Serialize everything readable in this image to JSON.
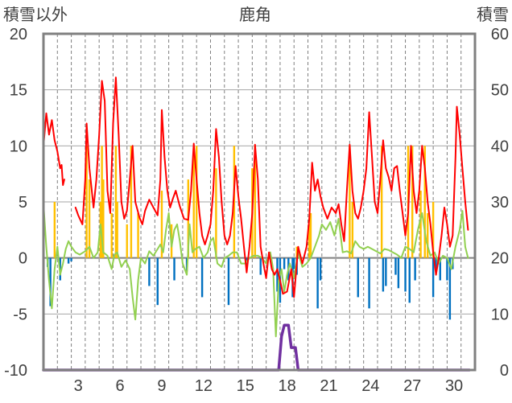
{
  "chart_data": {
    "type": "line",
    "title": "鹿角",
    "ylabel_left": "積雪以外",
    "ylabel_right": "積雪",
    "ylim_left": [
      -10,
      20
    ],
    "ylim_right": [
      0,
      60
    ],
    "yticks_left": [
      "20",
      "15",
      "10",
      "5",
      "0",
      "-5",
      "-10"
    ],
    "yticks_right": [
      "60",
      "50",
      "40",
      "30",
      "20",
      "10",
      "0"
    ],
    "xlim": [
      1,
      32
    ],
    "xticks": [
      "3",
      "6",
      "9",
      "12",
      "15",
      "18",
      "21",
      "24",
      "27",
      "30"
    ],
    "grid": "vertical-dashed-daily, horizontal-solid",
    "colors": {
      "temperature": "#ff0000",
      "precipitation_pos": "#ffc000",
      "precipitation_neg": "#0070c0",
      "green_series": "#92d050",
      "snow_depth": "#7030a0",
      "frame": "#808080"
    },
    "series": [
      {
        "key": "red",
        "axis": "left",
        "points": [
          [
            1.0,
            10
          ],
          [
            1.2,
            12.9
          ],
          [
            1.4,
            11
          ],
          [
            1.6,
            12.3
          ],
          [
            1.8,
            10.5
          ],
          [
            2.0,
            9.5
          ],
          [
            2.2,
            8
          ],
          [
            2.3,
            8.3
          ],
          [
            2.4,
            6.5
          ],
          [
            2.5,
            7
          ],
          [
            3.3,
            4.5
          ],
          [
            3.5,
            3.8
          ],
          [
            3.8,
            3
          ],
          [
            4.0,
            7
          ],
          [
            4.1,
            12
          ],
          [
            4.3,
            8
          ],
          [
            4.6,
            4.5
          ],
          [
            4.8,
            7
          ],
          [
            5.0,
            11
          ],
          [
            5.2,
            15.8
          ],
          [
            5.4,
            14
          ],
          [
            5.6,
            6
          ],
          [
            5.8,
            4
          ],
          [
            6.0,
            12
          ],
          [
            6.2,
            16.1
          ],
          [
            6.4,
            11
          ],
          [
            6.6,
            5
          ],
          [
            6.8,
            3.5
          ],
          [
            7.0,
            4.2
          ],
          [
            7.2,
            7
          ],
          [
            7.4,
            10
          ],
          [
            7.6,
            5
          ],
          [
            7.9,
            3.6
          ],
          [
            8.1,
            3
          ],
          [
            8.3,
            4.2
          ],
          [
            8.6,
            5.2
          ],
          [
            8.9,
            4.5
          ],
          [
            9.2,
            3.8
          ],
          [
            9.4,
            7
          ],
          [
            9.5,
            13.2
          ],
          [
            9.7,
            9
          ],
          [
            9.9,
            6
          ],
          [
            10.1,
            4.5
          ],
          [
            10.3,
            5.3
          ],
          [
            10.5,
            6
          ],
          [
            10.8,
            4.6
          ],
          [
            11.1,
            3.5
          ],
          [
            11.4,
            3.4
          ],
          [
            11.6,
            6
          ],
          [
            11.8,
            10.2
          ],
          [
            12.0,
            7
          ],
          [
            12.2,
            4
          ],
          [
            12.4,
            2
          ],
          [
            12.6,
            1.2
          ],
          [
            12.8,
            2
          ],
          [
            13.0,
            3
          ],
          [
            13.2,
            6
          ],
          [
            13.4,
            11.5
          ],
          [
            13.6,
            9
          ],
          [
            13.8,
            5
          ],
          [
            14.0,
            2
          ],
          [
            14.2,
            1.2
          ],
          [
            14.4,
            2
          ],
          [
            14.6,
            4
          ],
          [
            14.8,
            8.2
          ],
          [
            15.0,
            5.5
          ],
          [
            15.2,
            3.5
          ],
          [
            15.4,
            1
          ],
          [
            15.6,
            -1.3
          ],
          [
            15.8,
            1
          ],
          [
            16.0,
            4
          ],
          [
            16.2,
            10.1
          ],
          [
            16.4,
            7
          ],
          [
            16.6,
            1
          ],
          [
            16.8,
            -0.5
          ],
          [
            17.0,
            -1.8
          ],
          [
            17.2,
            0.5
          ],
          [
            17.4,
            -1
          ],
          [
            17.6,
            -1.5
          ],
          [
            17.8,
            -1
          ],
          [
            18.0,
            -2
          ],
          [
            18.2,
            -3.2
          ],
          [
            18.5,
            -3
          ],
          [
            18.8,
            -1
          ],
          [
            19.0,
            -3.5
          ],
          [
            19.3,
            1
          ],
          [
            19.6,
            -0.5
          ],
          [
            19.9,
            1
          ],
          [
            20.1,
            3.5
          ],
          [
            20.3,
            8.5
          ],
          [
            20.5,
            6
          ],
          [
            20.7,
            7
          ],
          [
            20.9,
            5.5
          ],
          [
            21.1,
            4.5
          ],
          [
            21.4,
            3.5
          ],
          [
            21.7,
            4.5
          ],
          [
            22.0,
            4
          ],
          [
            22.2,
            4.8
          ],
          [
            22.4,
            3
          ],
          [
            22.6,
            1.5
          ],
          [
            22.8,
            6
          ],
          [
            23.0,
            10.1
          ],
          [
            23.2,
            6
          ],
          [
            23.4,
            4
          ],
          [
            23.6,
            3.5
          ],
          [
            23.8,
            4.5
          ],
          [
            24.0,
            6
          ],
          [
            24.2,
            8
          ],
          [
            24.4,
            13
          ],
          [
            24.6,
            9
          ],
          [
            24.8,
            5
          ],
          [
            25.0,
            4
          ],
          [
            25.2,
            7
          ],
          [
            25.4,
            10.5
          ],
          [
            25.6,
            8
          ],
          [
            25.8,
            7.2
          ],
          [
            26.0,
            6
          ],
          [
            26.2,
            8
          ],
          [
            26.4,
            8.2
          ],
          [
            26.6,
            6
          ],
          [
            26.8,
            4
          ],
          [
            27.0,
            2
          ],
          [
            27.2,
            4
          ],
          [
            27.4,
            10
          ],
          [
            27.6,
            6
          ],
          [
            27.8,
            4
          ],
          [
            28.0,
            6
          ],
          [
            28.2,
            10
          ],
          [
            28.4,
            8
          ],
          [
            28.6,
            5
          ],
          [
            28.8,
            3
          ],
          [
            29.0,
            0.5
          ],
          [
            29.2,
            -1.5
          ],
          [
            29.4,
            0
          ],
          [
            29.6,
            2
          ],
          [
            29.8,
            4.5
          ],
          [
            30.0,
            3
          ],
          [
            30.2,
            1
          ],
          [
            30.4,
            2
          ],
          [
            30.6,
            9
          ],
          [
            30.7,
            13.5
          ],
          [
            30.9,
            11
          ],
          [
            31.1,
            8
          ],
          [
            31.3,
            5
          ],
          [
            31.5,
            2.5
          ]
        ],
        "gaps_after": [
          2.5
        ]
      },
      {
        "key": "green",
        "axis": "left",
        "points": [
          [
            1.0,
            4.8
          ],
          [
            1.2,
            1
          ],
          [
            1.4,
            -2
          ],
          [
            1.6,
            -4.5
          ],
          [
            1.8,
            -1
          ],
          [
            2.0,
            1
          ],
          [
            2.2,
            -1.5
          ],
          [
            2.4,
            -0.5
          ],
          [
            2.6,
            0.8
          ],
          [
            2.8,
            1.5
          ],
          [
            3.0,
            1
          ],
          [
            3.3,
            0.5
          ],
          [
            3.6,
            0.3
          ],
          [
            4.0,
            0.6
          ],
          [
            4.3,
            1
          ],
          [
            4.6,
            0
          ],
          [
            4.9,
            0.5
          ],
          [
            5.1,
            3
          ],
          [
            5.3,
            0.5
          ],
          [
            5.6,
            0.2
          ],
          [
            5.9,
            -1
          ],
          [
            6.1,
            0.3
          ],
          [
            6.3,
            0.5
          ],
          [
            6.6,
            -0.8
          ],
          [
            6.9,
            -0.2
          ],
          [
            7.2,
            -1
          ],
          [
            7.4,
            -3.5
          ],
          [
            7.6,
            -5.5
          ],
          [
            7.8,
            -2
          ],
          [
            8.0,
            0
          ],
          [
            8.3,
            -0.5
          ],
          [
            8.6,
            0.6
          ],
          [
            8.9,
            0.2
          ],
          [
            9.2,
            0.8
          ],
          [
            9.4,
            1.2
          ],
          [
            9.6,
            0.5
          ],
          [
            9.8,
            2.5
          ],
          [
            10.0,
            4
          ],
          [
            10.2,
            1
          ],
          [
            10.4,
            2.5
          ],
          [
            10.6,
            3
          ],
          [
            10.8,
            1.5
          ],
          [
            11.0,
            -0.5
          ],
          [
            11.3,
            -1.5
          ],
          [
            11.5,
            3
          ],
          [
            11.7,
            0.5
          ],
          [
            11.9,
            0.8
          ],
          [
            12.2,
            1
          ],
          [
            12.5,
            0
          ],
          [
            12.8,
            0.5
          ],
          [
            13.0,
            1.5
          ],
          [
            13.2,
            1.8
          ],
          [
            13.5,
            -0.5
          ],
          [
            13.8,
            -0.8
          ],
          [
            14.0,
            0
          ],
          [
            14.3,
            0.2
          ],
          [
            14.6,
            0.5
          ],
          [
            14.9,
            0.5
          ],
          [
            15.2,
            -0.5
          ],
          [
            15.5,
            -0.5
          ],
          [
            15.8,
            0
          ],
          [
            16.1,
            0.2
          ],
          [
            16.4,
            0.2
          ],
          [
            16.7,
            0
          ],
          [
            17.0,
            -0.5
          ],
          [
            17.3,
            0.5
          ],
          [
            17.5,
            -1
          ],
          [
            17.7,
            -7
          ],
          [
            17.9,
            -2
          ],
          [
            18.1,
            -1
          ],
          [
            18.3,
            -3
          ],
          [
            18.5,
            -1.5
          ],
          [
            18.7,
            -0.5
          ],
          [
            19.0,
            -1.8
          ],
          [
            19.3,
            0.5
          ],
          [
            19.6,
            -0.8
          ],
          [
            19.9,
            -0.5
          ],
          [
            20.2,
            0
          ],
          [
            20.5,
            1
          ],
          [
            20.8,
            2
          ],
          [
            21.0,
            3
          ],
          [
            21.3,
            2.5
          ],
          [
            21.6,
            3.2
          ],
          [
            21.9,
            2
          ],
          [
            22.2,
            3.5
          ],
          [
            22.5,
            0.5
          ],
          [
            22.8,
            0.6
          ],
          [
            23.1,
            0.4
          ],
          [
            23.4,
            1.5
          ],
          [
            23.7,
            1
          ],
          [
            24.0,
            0.8
          ],
          [
            24.3,
            1
          ],
          [
            24.6,
            0.8
          ],
          [
            24.9,
            0.6
          ],
          [
            25.2,
            0.4
          ],
          [
            25.5,
            0.8
          ],
          [
            25.8,
            0.7
          ],
          [
            26.1,
            0.5
          ],
          [
            26.4,
            0.3
          ],
          [
            26.7,
            0
          ],
          [
            27.0,
            1
          ],
          [
            27.3,
            0.8
          ],
          [
            27.6,
            0.5
          ],
          [
            27.9,
            2.5
          ],
          [
            28.2,
            4
          ],
          [
            28.5,
            1.5
          ],
          [
            28.8,
            0.2
          ],
          [
            29.1,
            0.5
          ],
          [
            29.4,
            -0.5
          ],
          [
            29.7,
            0.2
          ],
          [
            30.0,
            0
          ],
          [
            30.3,
            -1
          ],
          [
            30.6,
            1
          ],
          [
            30.9,
            2.5
          ],
          [
            31.1,
            4.2
          ],
          [
            31.3,
            1
          ],
          [
            31.5,
            0
          ]
        ],
        "gaps_after": []
      },
      {
        "key": "purple",
        "axis": "right",
        "points": [
          [
            1.0,
            0
          ],
          [
            17.9,
            0
          ],
          [
            18.1,
            6
          ],
          [
            18.3,
            8
          ],
          [
            18.6,
            8
          ],
          [
            18.8,
            4
          ],
          [
            19.1,
            4
          ],
          [
            19.3,
            0
          ],
          [
            31.6,
            0
          ]
        ],
        "gaps_after": []
      }
    ],
    "bars": [
      {
        "key": "yellow",
        "axis": "left",
        "x": [
          1.8,
          4.1,
          4.3,
          5.1,
          5.2,
          5.3,
          5.9,
          6.2,
          6.3,
          7.0,
          7.3,
          7.8,
          9.5,
          10.2,
          11.4,
          11.8,
          12.0,
          13.4,
          14.7,
          16.0,
          16.2,
          19.2,
          20.1,
          20.2,
          23.0,
          23.2,
          25.3,
          27.2,
          27.5,
          28.1,
          28.4,
          28.6,
          29.0
        ],
        "values": [
          5,
          10,
          7,
          5,
          10,
          7,
          4,
          10,
          5,
          3,
          10,
          4,
          6,
          3,
          7,
          10,
          10,
          8,
          10,
          8,
          10,
          1,
          3,
          4,
          10,
          5,
          10,
          10,
          10,
          6,
          10,
          4,
          5
        ]
      },
      {
        "key": "blue",
        "axis": "left",
        "x": [
          1.3,
          1.5,
          2.2,
          2.8,
          3.0,
          8.6,
          9.2,
          10.4,
          11.3,
          12.4,
          14.3,
          15.6,
          16.6,
          17.8,
          18.0,
          18.3,
          18.6,
          18.9,
          19.0,
          19.2,
          20.7,
          20.9,
          23.6,
          24.4,
          25.4,
          25.6,
          26.3,
          26.5,
          27.0,
          27.3,
          27.7,
          29.0,
          29.2,
          29.5,
          30.0,
          30.2,
          30.4
        ],
        "values": [
          -0.8,
          -4.3,
          -2,
          -0.5,
          -0.3,
          -2.5,
          -4.2,
          -2,
          -1.2,
          -3.5,
          -4.2,
          -0.8,
          -1.5,
          -3,
          -4,
          -1,
          -2,
          -3.5,
          -1,
          -1.5,
          -4.5,
          -2,
          -3.5,
          -4.5,
          -3,
          -2.5,
          -1.5,
          -2.7,
          -3,
          -4,
          -2,
          -3.5,
          -1,
          -2,
          -2,
          -5.5,
          -1
        ]
      }
    ]
  }
}
